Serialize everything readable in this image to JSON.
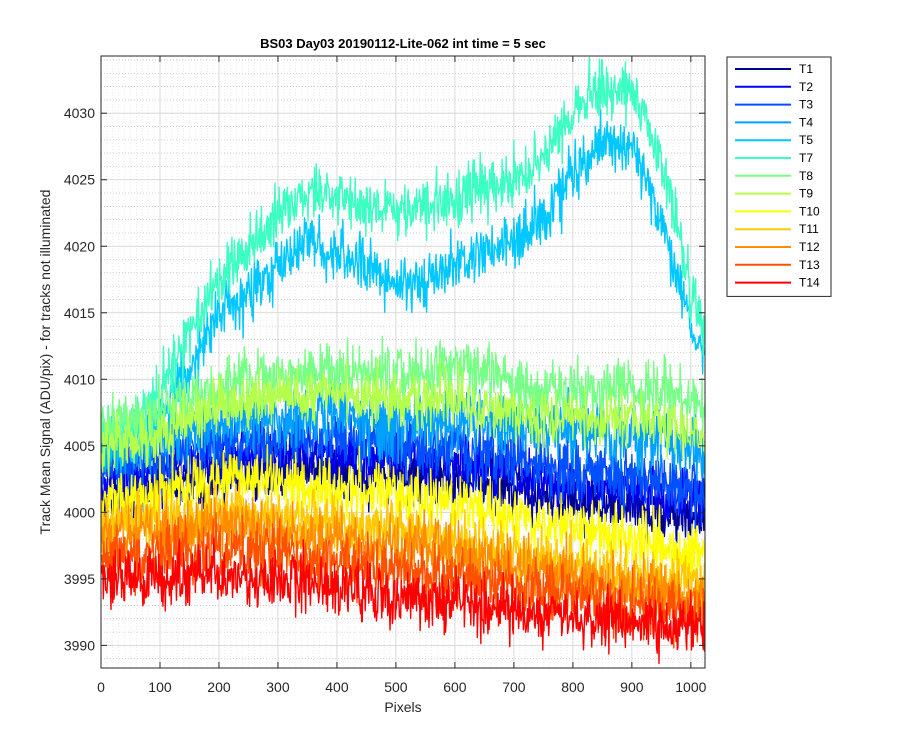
{
  "chart_data": {
    "type": "line",
    "title": "BS03 Day03 20190112-Lite-062 int time = 5 sec",
    "xlabel": "Pixels",
    "ylabel": "Track Mean Signal (ADU/pix) - for tracks not illuminated",
    "xlim": [
      0,
      1024
    ],
    "ylim": [
      3988.3,
      4034.3
    ],
    "xticks": [
      "0",
      "100",
      "200",
      "300",
      "400",
      "500",
      "600",
      "700",
      "800",
      "900",
      "1000"
    ],
    "yticks": [
      "3990",
      "3995",
      "4000",
      "4005",
      "4010",
      "4015",
      "4020",
      "4025",
      "4030"
    ],
    "grid": true,
    "minor_grid": true,
    "legend_position": "outside-top-right",
    "noise_note_visible": false,
    "x": [
      0,
      50,
      100,
      150,
      200,
      250,
      300,
      350,
      400,
      450,
      500,
      550,
      600,
      650,
      700,
      750,
      800,
      850,
      900,
      950,
      1000,
      1024
    ],
    "series": [
      {
        "name": "T1",
        "color": "#00008f",
        "noise": 1.5,
        "values": [
          4001.0,
          4001.5,
          4002.0,
          4002.5,
          4003.0,
          4003.2,
          4003.3,
          4003.5,
          4003.3,
          4003.0,
          4003.0,
          4002.8,
          4002.5,
          4002.2,
          4001.7,
          4001.2,
          4000.8,
          4000.5,
          4000.3,
          4000.0,
          3999.8,
          3999.5
        ]
      },
      {
        "name": "T2",
        "color": "#0000ef",
        "noise": 1.5,
        "values": [
          4002.0,
          4002.5,
          4003.0,
          4003.5,
          4004.0,
          4004.2,
          4004.5,
          4004.7,
          4004.5,
          4004.3,
          4004.2,
          4004.0,
          4003.8,
          4003.5,
          4003.0,
          4002.5,
          4002.0,
          4001.8,
          4001.5,
          4001.2,
          4001.0,
          4000.8
        ]
      },
      {
        "name": "T3",
        "color": "#0050ff",
        "noise": 1.6,
        "values": [
          4003.0,
          4003.5,
          4004.0,
          4004.5,
          4005.0,
          4005.3,
          4005.5,
          4005.7,
          4005.5,
          4005.3,
          4005.2,
          4005.0,
          4004.8,
          4004.5,
          4004.0,
          4003.5,
          4003.2,
          4003.0,
          4002.8,
          4002.5,
          4002.0,
          4001.8
        ]
      },
      {
        "name": "T4",
        "color": "#00a0ff",
        "noise": 1.7,
        "values": [
          4004.5,
          4005.0,
          4005.5,
          4006.0,
          4006.5,
          4006.8,
          4007.0,
          4007.2,
          4007.0,
          4006.8,
          4006.8,
          4006.7,
          4006.8,
          4006.7,
          4006.5,
          4006.3,
          4006.0,
          4005.8,
          4005.6,
          4005.4,
          4005.0,
          4004.5
        ]
      },
      {
        "name": "T5",
        "color": "#00c8ff",
        "noise": 1.5,
        "values": [
          4005.0,
          4005.5,
          4007.0,
          4011.0,
          4015.0,
          4016.5,
          4018.5,
          4020.5,
          4019.5,
          4018.5,
          4017.0,
          4017.5,
          4018.5,
          4019.5,
          4020.0,
          4022.0,
          4025.5,
          4027.5,
          4027.5,
          4022.0,
          4014.0,
          4011.0
        ]
      },
      {
        "name": "T7",
        "color": "#3cffc3",
        "noise": 1.5,
        "values": [
          4006.0,
          4006.5,
          4009.0,
          4013.5,
          4017.5,
          4020.0,
          4022.0,
          4024.0,
          4023.8,
          4023.0,
          4022.8,
          4023.0,
          4023.5,
          4024.5,
          4025.0,
          4026.5,
          4030.0,
          4032.0,
          4032.0,
          4026.5,
          4017.0,
          4013.5
        ]
      },
      {
        "name": "T8",
        "color": "#78ff87",
        "noise": 1.6,
        "values": [
          4006.5,
          4007.0,
          4007.5,
          4008.5,
          4009.5,
          4010.0,
          4010.5,
          4010.5,
          4010.5,
          4010.5,
          4010.3,
          4010.5,
          4011.0,
          4010.5,
          4009.5,
          4009.0,
          4009.0,
          4009.5,
          4009.5,
          4009.0,
          4008.5,
          4008.0
        ]
      },
      {
        "name": "T9",
        "color": "#b4ff4b",
        "noise": 1.5,
        "values": [
          4005.0,
          4005.5,
          4006.0,
          4007.0,
          4008.0,
          4008.5,
          4008.7,
          4008.8,
          4008.8,
          4008.6,
          4008.5,
          4008.5,
          4008.5,
          4008.0,
          4007.5,
          4007.0,
          4007.0,
          4007.0,
          4006.8,
          4006.5,
          4006.0,
          4005.5
        ]
      },
      {
        "name": "T10",
        "color": "#ffff00",
        "noise": 1.6,
        "values": [
          4000.5,
          4001.0,
          4001.5,
          4002.0,
          4002.5,
          4002.5,
          4002.3,
          4002.0,
          4001.8,
          4001.5,
          4001.3,
          4001.0,
          4000.8,
          4000.3,
          3999.8,
          3999.3,
          3998.8,
          3998.3,
          3998.0,
          3997.5,
          3997.0,
          3996.8
        ]
      },
      {
        "name": "T11",
        "color": "#ffc800",
        "noise": 1.6,
        "values": [
          3999.0,
          3999.3,
          3999.5,
          3999.8,
          4000.0,
          3999.8,
          3999.5,
          3999.3,
          3999.0,
          3998.8,
          3998.5,
          3998.3,
          3998.0,
          3997.5,
          3997.0,
          3996.5,
          3996.0,
          3995.5,
          3995.2,
          3994.8,
          3994.5,
          3994.2
        ]
      },
      {
        "name": "T12",
        "color": "#ff8c00",
        "noise": 1.6,
        "values": [
          3998.0,
          3998.3,
          3998.5,
          3998.7,
          3999.0,
          3998.8,
          3998.5,
          3998.3,
          3998.0,
          3997.7,
          3997.5,
          3997.3,
          3997.0,
          3996.5,
          3996.0,
          3995.5,
          3995.0,
          3994.7,
          3994.3,
          3994.0,
          3993.7,
          3993.5
        ]
      },
      {
        "name": "T13",
        "color": "#ff5000",
        "noise": 1.6,
        "values": [
          3996.5,
          3996.7,
          3996.8,
          3997.0,
          3997.2,
          3997.0,
          3996.8,
          3996.5,
          3996.2,
          3996.0,
          3995.8,
          3995.5,
          3995.2,
          3994.8,
          3994.5,
          3994.0,
          3993.7,
          3993.4,
          3993.0,
          3992.8,
          3992.5,
          3992.3
        ]
      },
      {
        "name": "T14",
        "color": "#ff0000",
        "noise": 1.6,
        "values": [
          3995.0,
          3995.0,
          3995.0,
          3995.2,
          3995.3,
          3995.0,
          3994.8,
          3994.5,
          3994.3,
          3994.0,
          3993.8,
          3993.5,
          3993.3,
          3993.0,
          3992.8,
          3992.5,
          3992.2,
          3992.0,
          3991.8,
          3991.5,
          3991.3,
          3991.2
        ]
      }
    ]
  }
}
